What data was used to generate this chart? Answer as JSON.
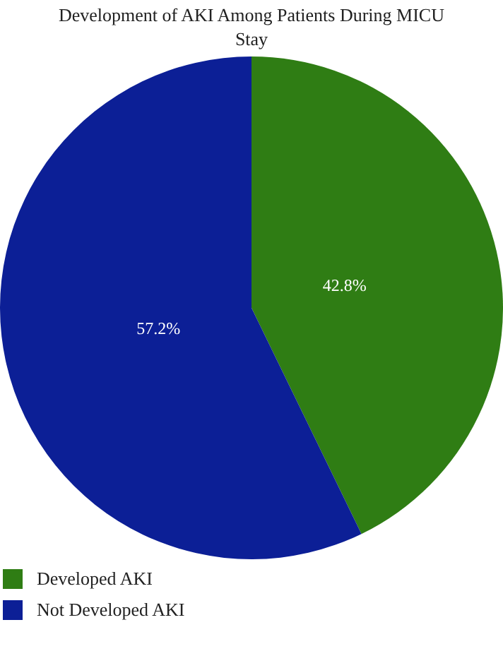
{
  "chart_data": {
    "type": "pie",
    "title": "Development of AKI Among Patients During MICU Stay",
    "categories": [
      "Developed AKI",
      "Not Developed AKI"
    ],
    "values": [
      42.8,
      57.2
    ],
    "value_labels": [
      "42.8%",
      "57.2%"
    ],
    "colors": [
      "#2f7d14",
      "#0c1f96"
    ],
    "legend": "bottom left"
  }
}
